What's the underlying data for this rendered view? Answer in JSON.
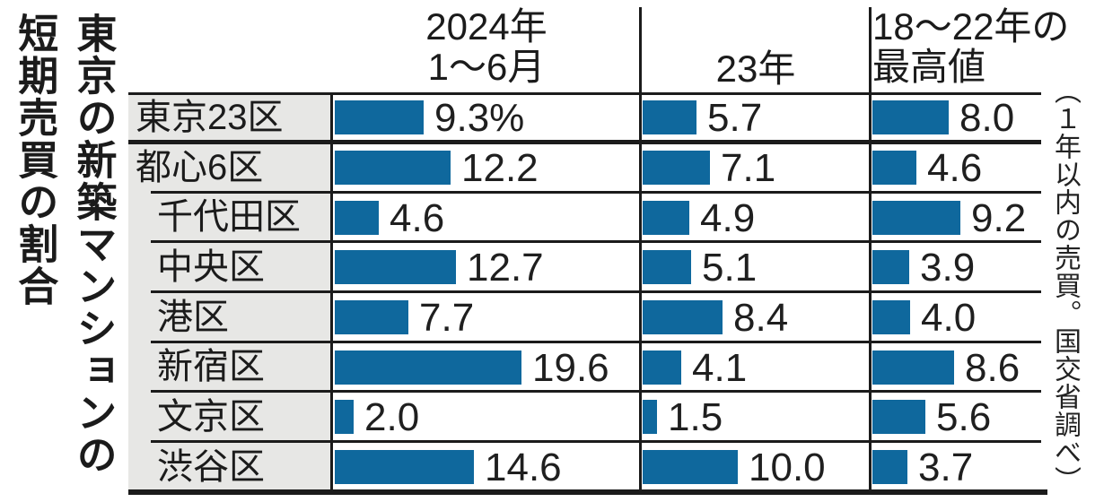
{
  "title": "東京の新築マンションの短期売買の割合",
  "title_lines": [
    "東京の新築マンションの",
    "短期売買の割合"
  ],
  "side_note": "（１年以内の売買。国交省調べ）",
  "columns": [
    {
      "id": "2024h1",
      "label_lines": [
        "2024年",
        "1〜6月"
      ]
    },
    {
      "id": "2023",
      "label_lines": [
        "23年"
      ]
    },
    {
      "id": "max1822",
      "label_lines": [
        "18〜22年の",
        "最高値"
      ]
    }
  ],
  "rows": [
    {
      "label": "東京23区",
      "indent": false,
      "values": [
        9.3,
        5.7,
        8.0
      ],
      "value_labels": [
        "9.3%",
        "5.7",
        "8.0"
      ]
    },
    {
      "label": "都心6区",
      "indent": false,
      "values": [
        12.2,
        7.1,
        4.6
      ],
      "value_labels": [
        "12.2",
        "7.1",
        "4.6"
      ]
    },
    {
      "label": "千代田区",
      "indent": true,
      "values": [
        4.6,
        4.9,
        9.2
      ],
      "value_labels": [
        "4.6",
        "4.9",
        "9.2"
      ]
    },
    {
      "label": "中央区",
      "indent": true,
      "values": [
        12.7,
        5.1,
        3.9
      ],
      "value_labels": [
        "12.7",
        "5.1",
        "3.9"
      ]
    },
    {
      "label": "港区",
      "indent": true,
      "values": [
        7.7,
        8.4,
        4.0
      ],
      "value_labels": [
        "7.7",
        "8.4",
        "4.0"
      ]
    },
    {
      "label": "新宿区",
      "indent": true,
      "values": [
        19.6,
        4.1,
        8.6
      ],
      "value_labels": [
        "19.6",
        "4.1",
        "8.6"
      ]
    },
    {
      "label": "文京区",
      "indent": true,
      "values": [
        2.0,
        1.5,
        5.6
      ],
      "value_labels": [
        "2.0",
        "1.5",
        "5.6"
      ]
    },
    {
      "label": "渋谷区",
      "indent": true,
      "values": [
        14.6,
        10.0,
        3.7
      ],
      "value_labels": [
        "14.6",
        "10.0",
        "3.7"
      ]
    }
  ],
  "colors": {
    "bar": "#0f689d",
    "label_bg": "#e7e7e5",
    "line": "#1b1b1b",
    "text": "#1b1b1b"
  },
  "chart_data": {
    "type": "bar",
    "orientation": "horizontal",
    "title": "東京の新築マンションの短期売買の割合",
    "note": "（１年以内の売買。国交省調べ）",
    "unit": "%",
    "categories": [
      "東京23区",
      "都心6区",
      "千代田区",
      "中央区",
      "港区",
      "新宿区",
      "文京区",
      "渋谷区"
    ],
    "series": [
      {
        "name": "2024年1〜6月",
        "values": [
          9.3,
          12.2,
          4.6,
          12.7,
          7.7,
          19.6,
          2.0,
          14.6
        ]
      },
      {
        "name": "23年",
        "values": [
          5.7,
          7.1,
          4.9,
          5.1,
          8.4,
          4.1,
          1.5,
          10.0
        ]
      },
      {
        "name": "18〜22年の最高値",
        "values": [
          8.0,
          4.6,
          9.2,
          3.9,
          4.0,
          8.6,
          5.6,
          3.7
        ]
      }
    ],
    "value_axis_range": [
      0,
      20
    ],
    "grid": false,
    "legend_position": "column-headers",
    "bar_color": "#0f689d"
  }
}
